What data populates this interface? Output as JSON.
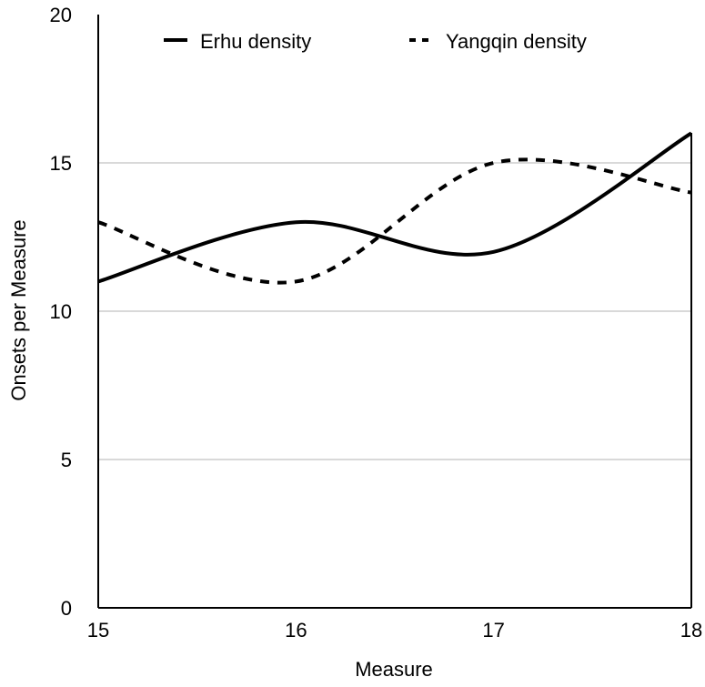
{
  "chart_data": {
    "type": "line",
    "title": "",
    "xlabel": "Measure",
    "ylabel": "Onsets per Measure",
    "xlim": [
      15,
      18
    ],
    "ylim": [
      0,
      20
    ],
    "xticks": [
      15,
      16,
      17,
      18
    ],
    "yticks": [
      0,
      5,
      10,
      15,
      20
    ],
    "grid": "horizontal",
    "legend_position": "top",
    "series": [
      {
        "name": "Erhu density",
        "style": "solid",
        "color": "#000000",
        "x": [
          15,
          16,
          17,
          18
        ],
        "y": [
          11,
          13,
          12,
          16
        ]
      },
      {
        "name": "Yangqin density",
        "style": "dashed",
        "color": "#000000",
        "x": [
          15,
          16,
          17,
          18
        ],
        "y": [
          13,
          11,
          15,
          14
        ]
      }
    ]
  },
  "colors": {
    "grid": "#b3b3b3",
    "axis": "#000000",
    "background": "#ffffff"
  }
}
